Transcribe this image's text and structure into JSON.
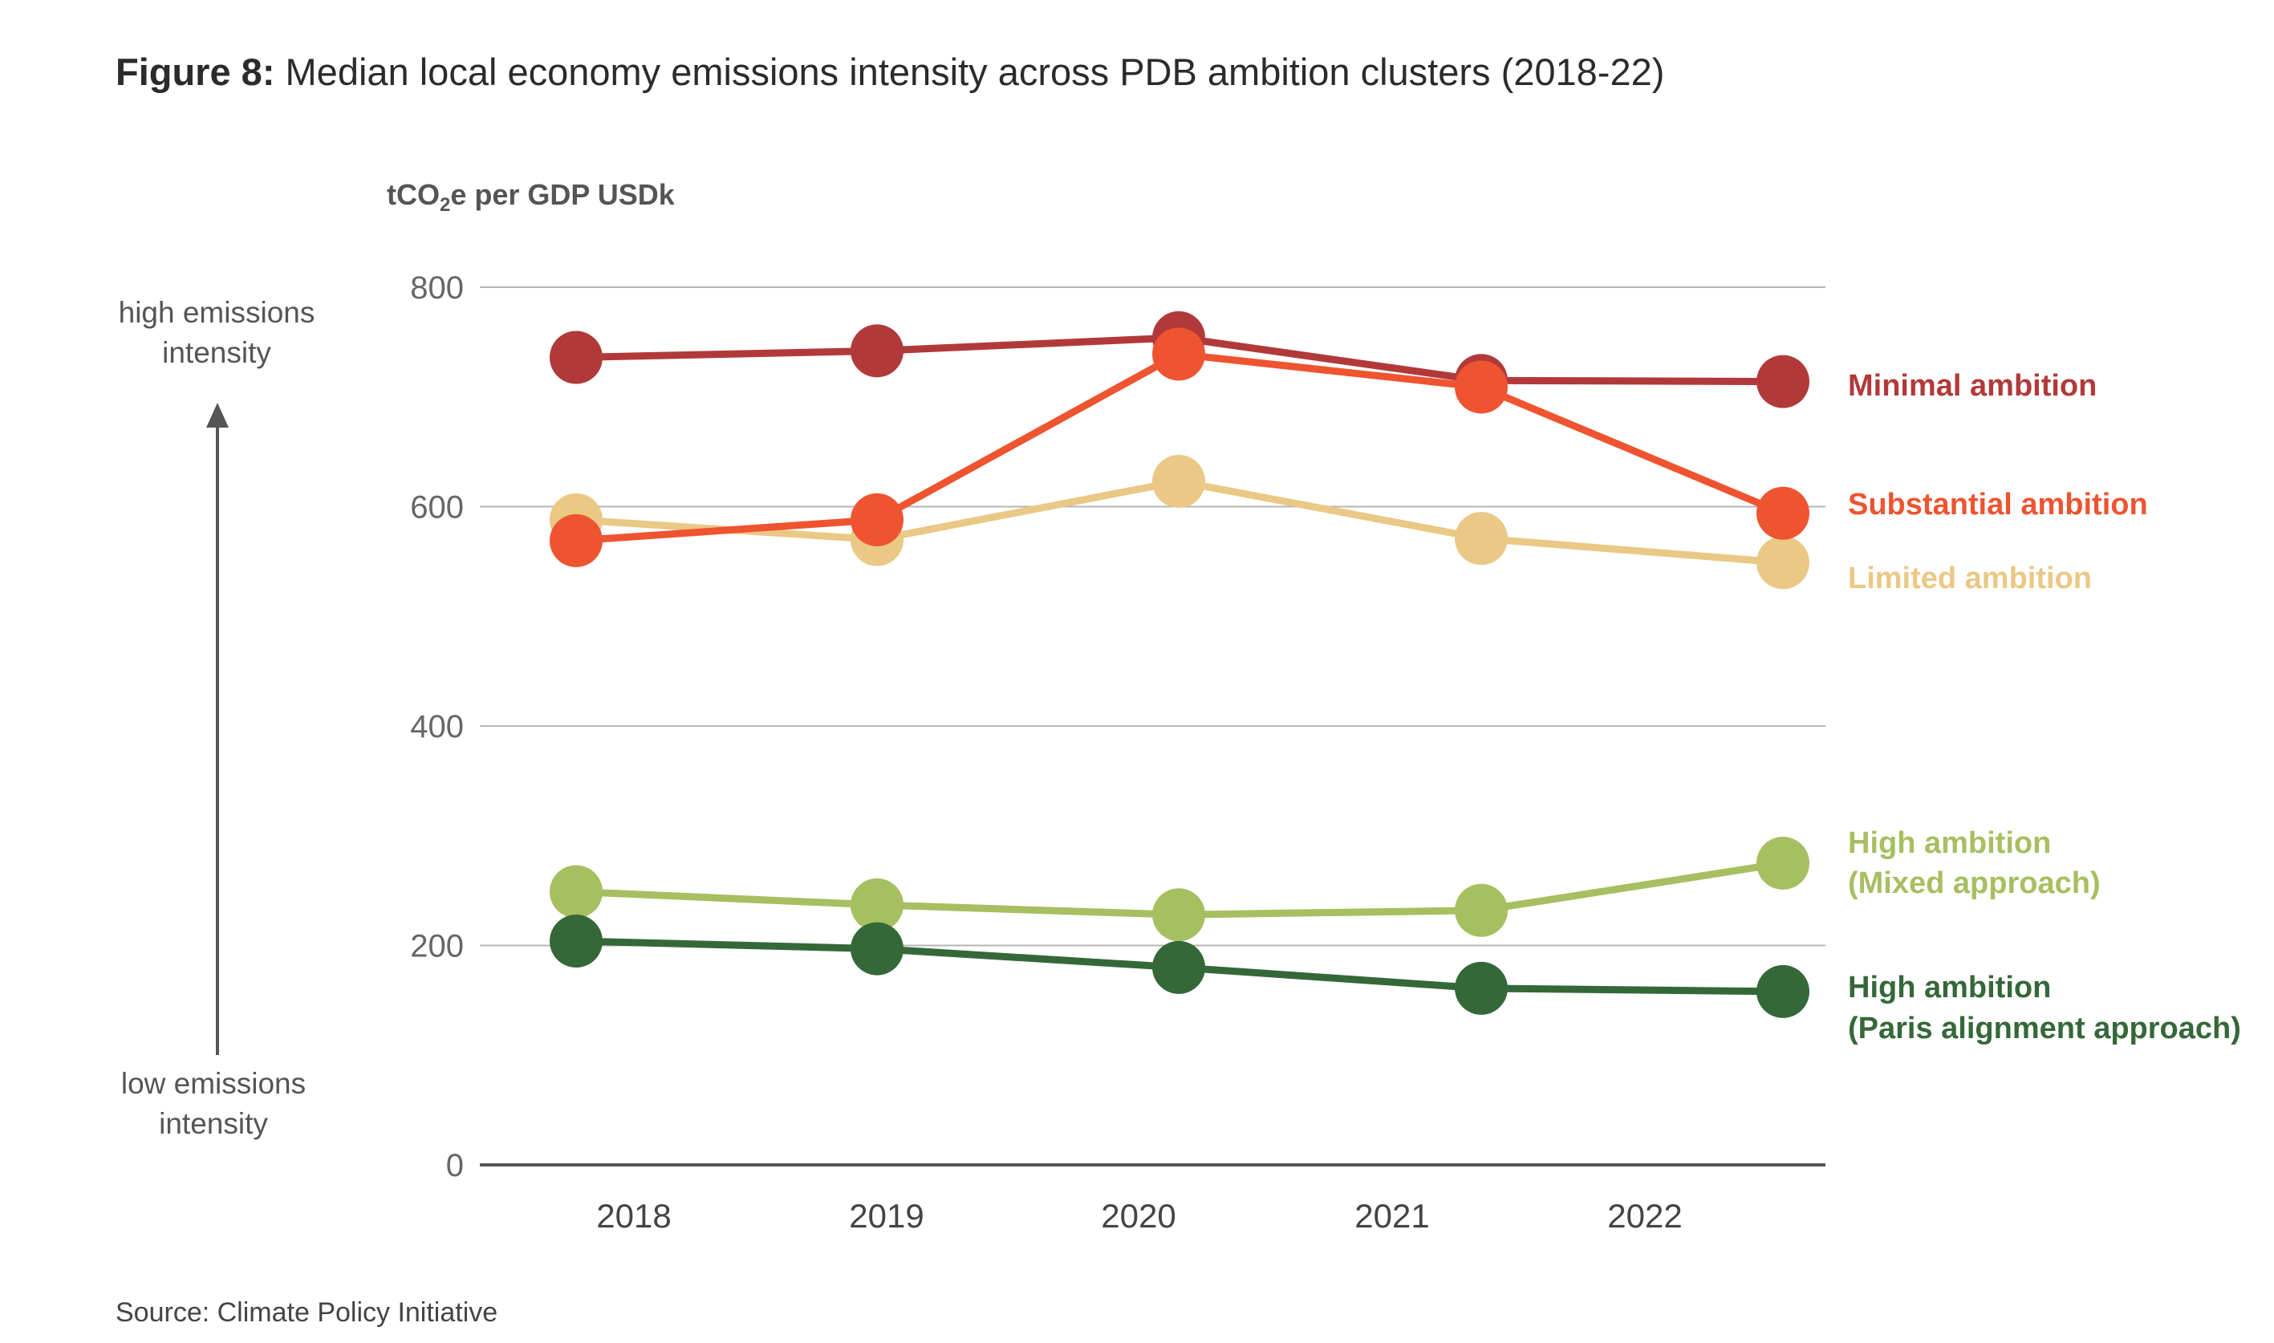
{
  "figure": {
    "title_bold": "Figure 8:",
    "title_rest": "Median local economy emissions intensity across PDB ambition clusters (2018-22)",
    "unit_pre": "tCO",
    "unit_sub": "2",
    "unit_post": "e per GDP USDk",
    "side_high_1": "high emissions",
    "side_high_2": "intensity",
    "side_low_1": "low emissions",
    "side_low_2": "intensity",
    "source": "Source: Climate Policy Initiative"
  },
  "chart_data": {
    "type": "line",
    "ylabel": "tCO2e per GDP USDk",
    "ylim": [
      0,
      800
    ],
    "yticks": [
      0,
      200,
      400,
      600,
      800
    ],
    "x_labels": [
      "2018",
      "2019",
      "2020",
      "2021",
      "2022"
    ],
    "grid": true,
    "legend_placement": "right, inline at series ends",
    "series": [
      {
        "name": "Minimal ambition",
        "label_lines": [
          "Minimal ambition"
        ],
        "color": "#b2393a",
        "values": [
          736,
          742,
          754,
          715,
          714
        ]
      },
      {
        "name": "Substantial ambition",
        "label_lines": [
          "Substantial ambition"
        ],
        "color": "#ee5430",
        "values": [
          569,
          588,
          739,
          709,
          594
        ]
      },
      {
        "name": "Limited ambition",
        "label_lines": [
          "Limited ambition"
        ],
        "color": "#eac885",
        "values": [
          588,
          570,
          623,
          571,
          549
        ]
      },
      {
        "name": "High ambition (Mixed approach)",
        "label_lines": [
          "High ambition",
          "(Mixed approach)"
        ],
        "color": "#a6bf60",
        "values": [
          249,
          237,
          228,
          232,
          275
        ]
      },
      {
        "name": "High ambition (Paris alignment approach)",
        "label_lines": [
          "High ambition",
          "(Paris alignment approach)"
        ],
        "color": "#356838",
        "values": [
          204,
          197,
          180,
          161,
          158
        ]
      }
    ]
  }
}
